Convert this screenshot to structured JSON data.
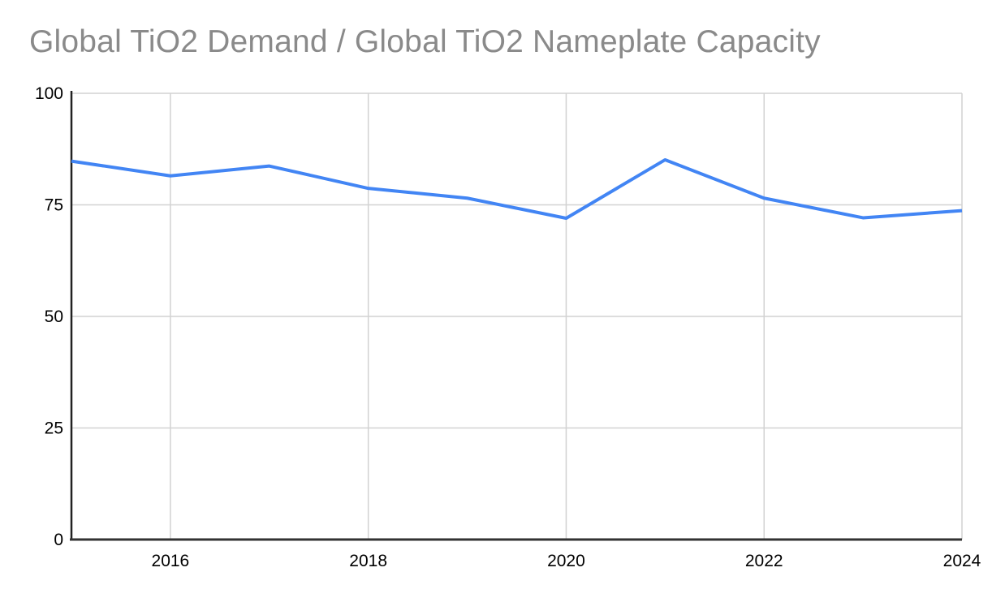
{
  "page": {
    "background": "#ffffff"
  },
  "chart_data": {
    "type": "line",
    "title": "Global TiO2 Demand / Global TiO2 Nameplate Capacity",
    "x": [
      2015,
      2016,
      2017,
      2018,
      2019,
      2020,
      2021,
      2022,
      2023,
      2024
    ],
    "series": [
      {
        "name": "Global TiO2 Demand / Global TiO2 Nameplate Capacity",
        "values": [
          84.8,
          81.5,
          83.7,
          78.7,
          76.5,
          72.0,
          85.1,
          76.5,
          72.1,
          73.7
        ]
      }
    ],
    "xlim": [
      2015,
      2024
    ],
    "ylim": [
      0,
      100
    ],
    "x_ticks": [
      2016,
      2018,
      2020,
      2022,
      2024
    ],
    "y_ticks": [
      0,
      25,
      50,
      75,
      100
    ],
    "grid": true,
    "legend_position": "none",
    "colors": {
      "line": "#4285f4",
      "grid": "#d2d2d2",
      "y_axis": "#222222",
      "x_axis": "#333333",
      "tick_label": "#000000",
      "title": "#8a8a8a"
    }
  }
}
